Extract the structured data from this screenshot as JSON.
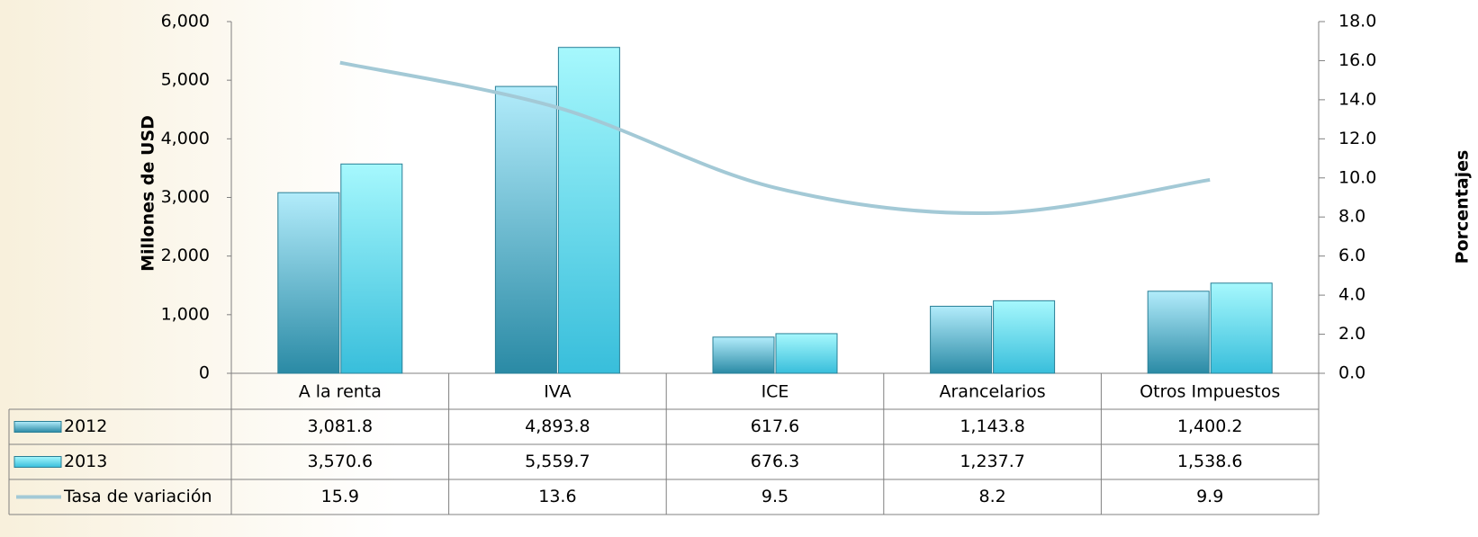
{
  "chart_data": {
    "type": "bar",
    "y_label": "Millones de USD",
    "y2_label": "Porcentajes",
    "categories": [
      "A la renta",
      "IVA",
      "ICE",
      "Arancelarios",
      "Otros Impuestos"
    ],
    "series": [
      {
        "name": "2012",
        "color": "#3aa7c2",
        "values": [
          3081.8,
          4893.8,
          617.6,
          1143.8,
          1400.2
        ],
        "value_labels": [
          "3,081.8",
          "4,893.8",
          "617.6",
          "1,143.8",
          "1,400.2"
        ]
      },
      {
        "name": "2013",
        "color": "#4cd0e8",
        "values": [
          3570.6,
          5559.7,
          676.3,
          1237.7,
          1538.6
        ],
        "value_labels": [
          "3,570.6",
          "5,559.7",
          "676.3",
          "1,237.7",
          "1,538.6"
        ]
      },
      {
        "name": "Tasa de variación",
        "type": "line",
        "axis": "y2",
        "color": "#a3c9d6",
        "values": [
          15.9,
          13.6,
          9.5,
          8.2,
          9.9
        ]
      }
    ],
    "ylim": [
      0,
      6000
    ],
    "yticks": [
      0,
      {
        "value": 1000,
        "label": "1,000"
      },
      {
        "value": 2000,
        "label": "2,000"
      },
      {
        "value": 3000,
        "label": "3,000"
      },
      {
        "value": 4000,
        "label": "4,000"
      },
      {
        "value": 5000,
        "label": "5,000"
      },
      {
        "value": 6000,
        "label": "6,000"
      }
    ],
    "y2lim": [
      0,
      18
    ],
    "y2ticks": [
      {
        "value": 0,
        "label": "0.0"
      },
      {
        "value": 2,
        "label": "2.0"
      },
      {
        "value": 4,
        "label": "4.0"
      },
      {
        "value": 6,
        "label": "6.0"
      },
      {
        "value": 8,
        "label": "8.0"
      },
      {
        "value": 10,
        "label": "10.0"
      },
      {
        "value": 12,
        "label": "12.0"
      },
      {
        "value": 14,
        "label": "14.0"
      },
      {
        "value": 16,
        "label": "16.0"
      },
      {
        "value": 18,
        "label": "18.0"
      }
    ],
    "grid": false
  }
}
